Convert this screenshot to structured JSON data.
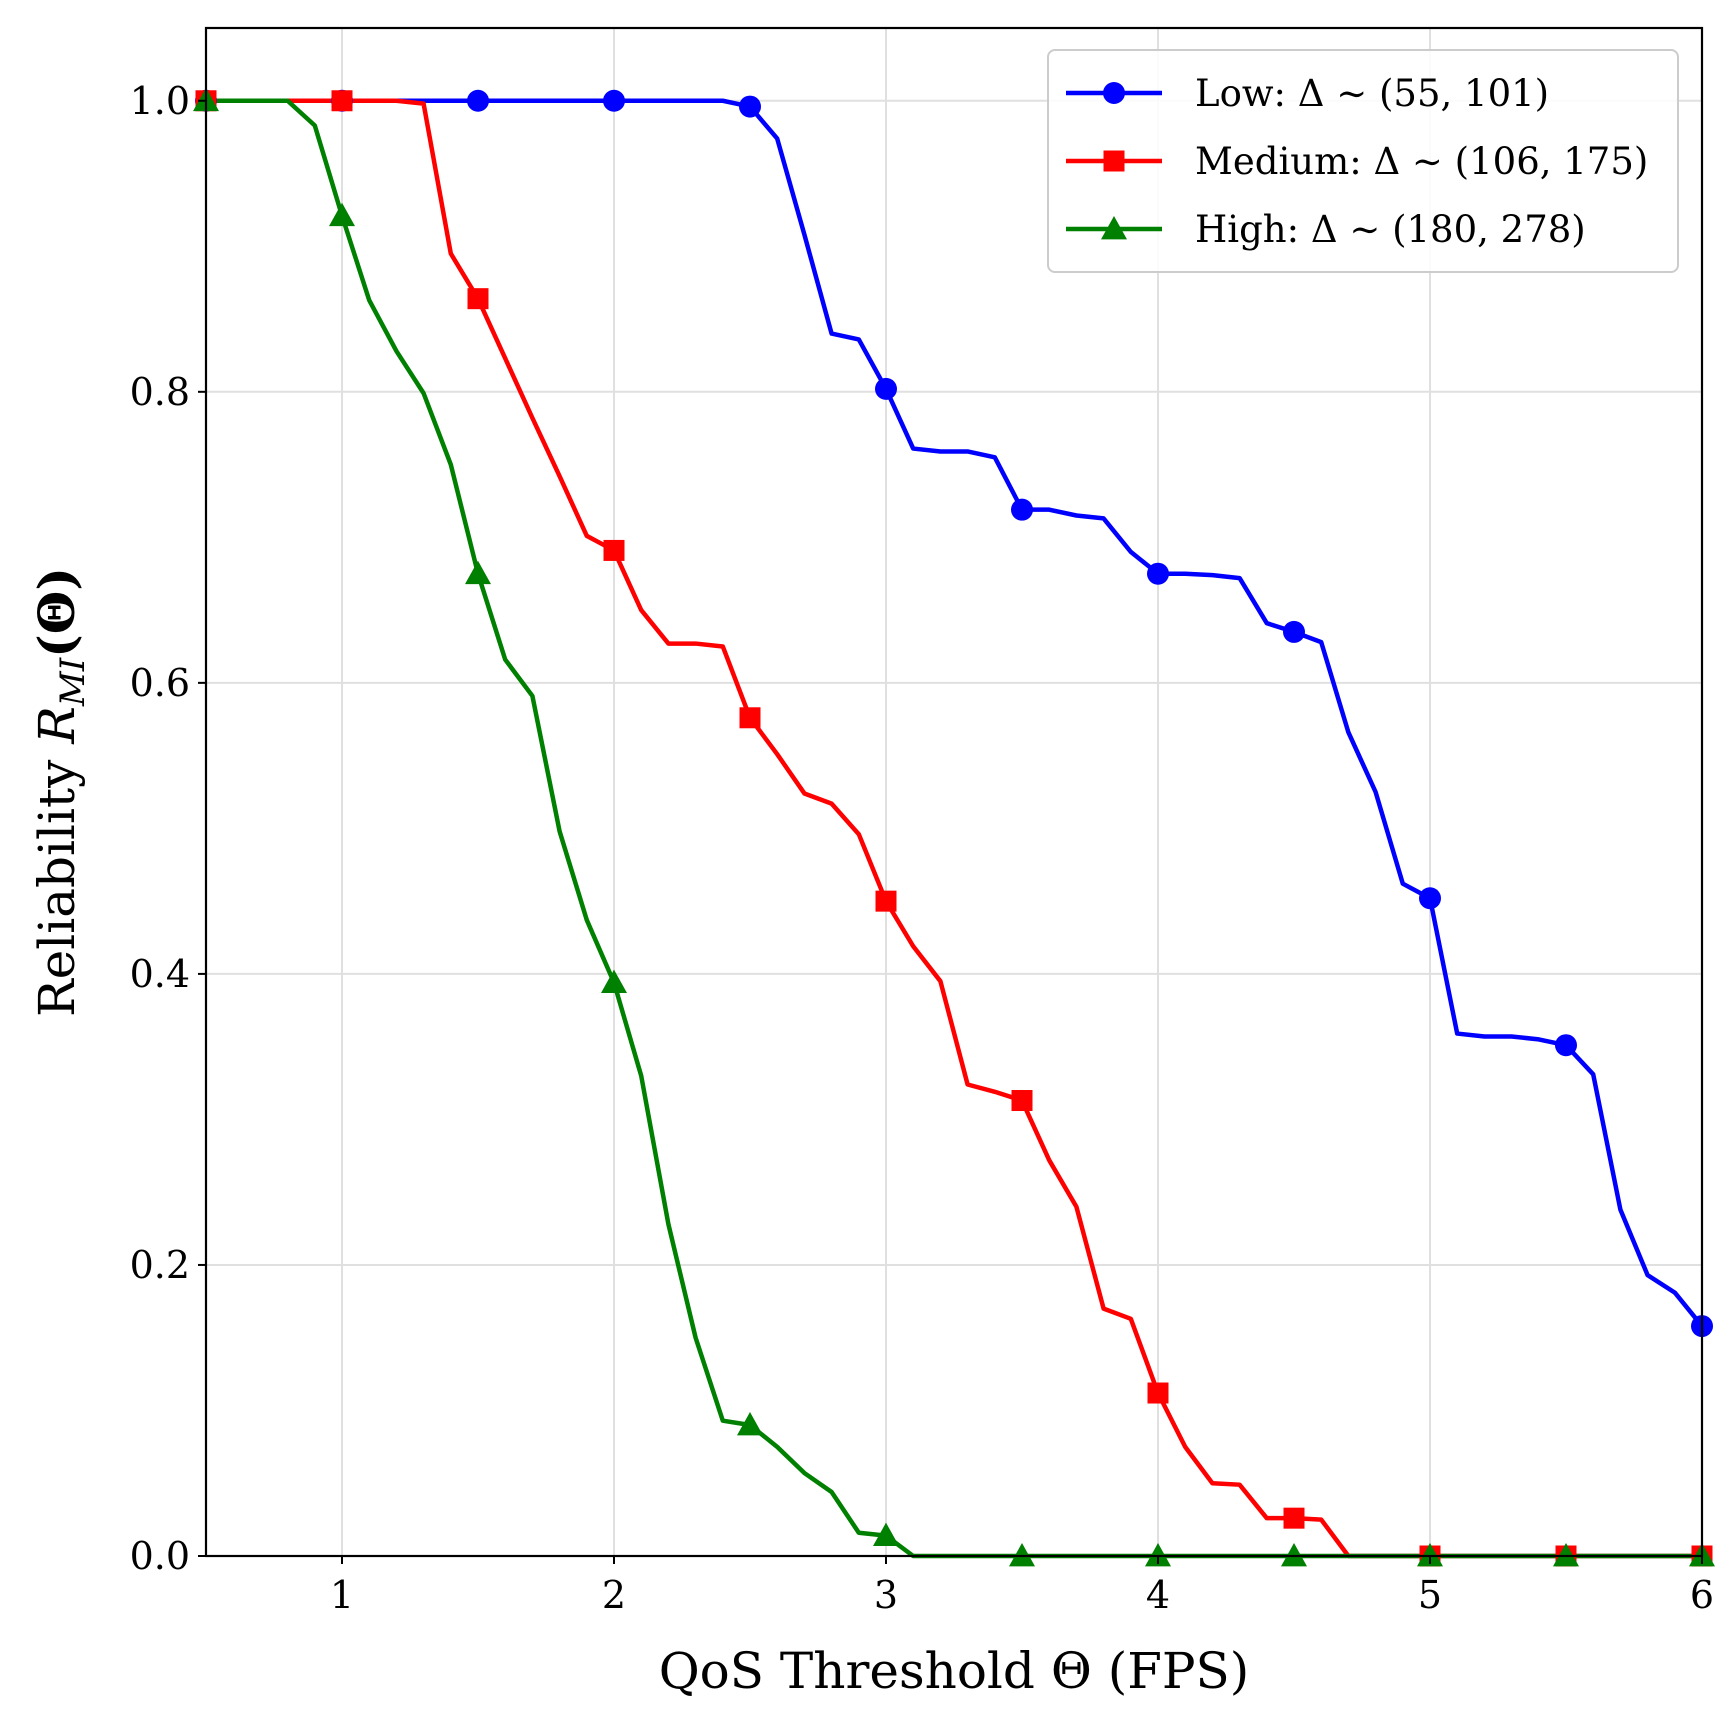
{
  "chart_data": {
    "type": "line",
    "title": "",
    "xlabel": "QoS Threshold Θ (FPS)",
    "ylabel": "Reliability",
    "ylabel_symbol": "R",
    "ylabel_subscript": "MI",
    "ylabel_arg": "(Θ)",
    "xlim": [
      0.5,
      6
    ],
    "ylim": [
      0,
      1.05
    ],
    "xticks": [
      1,
      2,
      3,
      4,
      5,
      6
    ],
    "xtick_labels": [
      "1",
      "2",
      "3",
      "4",
      "5",
      "6"
    ],
    "yticks": [
      0,
      0.2,
      0.4,
      0.6,
      0.8,
      1.0
    ],
    "ytick_labels": [
      "0.0",
      "0.2",
      "0.4",
      "0.6",
      "0.8",
      "1.0"
    ],
    "grid": true,
    "legend_position": "top-right",
    "x": [
      0.5,
      0.6,
      0.7,
      0.8,
      0.9,
      1.0,
      1.1,
      1.2,
      1.3,
      1.4,
      1.5,
      1.6,
      1.7,
      1.8,
      1.9,
      2.0,
      2.1,
      2.2,
      2.3,
      2.4,
      2.5,
      2.6,
      2.7,
      2.8,
      2.9,
      3.0,
      3.1,
      3.2,
      3.3,
      3.4,
      3.5,
      3.6,
      3.7,
      3.8,
      3.9,
      4.0,
      4.1,
      4.2,
      4.3,
      4.4,
      4.5,
      4.6,
      4.7,
      4.8,
      4.9,
      5.0,
      5.1,
      5.2,
      5.3,
      5.4,
      5.5,
      5.6,
      5.7,
      5.8,
      5.9,
      6.0
    ],
    "marker_every": 5,
    "series": [
      {
        "name": "Low: Δ ∼ (55, 101)",
        "color": "#0000ff",
        "marker": "circle",
        "values": [
          1.0,
          1.0,
          1.0,
          1.0,
          1.0,
          1.0,
          1.0,
          1.0,
          1.0,
          1.0,
          1.0,
          1.0,
          1.0,
          1.0,
          1.0,
          1.0,
          1.0,
          1.0,
          1.0,
          1.0,
          0.996,
          0.974,
          0.908,
          0.84,
          0.836,
          0.802,
          0.761,
          0.759,
          0.759,
          0.755,
          0.719,
          0.719,
          0.715,
          0.713,
          0.69,
          0.675,
          0.675,
          0.674,
          0.672,
          0.641,
          0.635,
          0.628,
          0.566,
          0.525,
          0.462,
          0.452,
          0.359,
          0.357,
          0.357,
          0.355,
          0.351,
          0.331,
          0.238,
          0.193,
          0.181,
          0.158
        ]
      },
      {
        "name": "Medium: Δ ∼ (106, 175)",
        "color": "#ff0000",
        "marker": "square",
        "values": [
          1.0,
          1.0,
          1.0,
          1.0,
          1.0,
          1.0,
          1.0,
          1.0,
          0.998,
          0.895,
          0.864,
          0.823,
          0.782,
          0.742,
          0.701,
          0.691,
          0.65,
          0.627,
          0.627,
          0.625,
          0.576,
          0.551,
          0.524,
          0.517,
          0.496,
          0.45,
          0.419,
          0.395,
          0.324,
          0.319,
          0.313,
          0.272,
          0.24,
          0.17,
          0.163,
          0.112,
          0.075,
          0.05,
          0.049,
          0.026,
          0.026,
          0.025,
          0.0,
          0.0,
          0.0,
          0.0,
          0.0,
          0.0,
          0.0,
          0.0,
          0.0,
          0.0,
          0.0,
          0.0,
          0.0,
          0.0
        ]
      },
      {
        "name": "High: Δ ∼ (180, 278)",
        "color": "#008000",
        "marker": "triangle",
        "values": [
          1.0,
          1.0,
          1.0,
          1.0,
          0.983,
          0.921,
          0.863,
          0.828,
          0.799,
          0.75,
          0.675,
          0.616,
          0.591,
          0.498,
          0.437,
          0.394,
          0.33,
          0.228,
          0.15,
          0.093,
          0.09,
          0.075,
          0.057,
          0.044,
          0.016,
          0.014,
          0.0,
          0.0,
          0.0,
          0.0,
          0.0,
          0.0,
          0.0,
          0.0,
          0.0,
          0.0,
          0.0,
          0.0,
          0.0,
          0.0,
          0.0,
          0.0,
          0.0,
          0.0,
          0.0,
          0.0,
          0.0,
          0.0,
          0.0,
          0.0,
          0.0,
          0.0,
          0.0,
          0.0,
          0.0,
          0.0
        ]
      }
    ]
  }
}
